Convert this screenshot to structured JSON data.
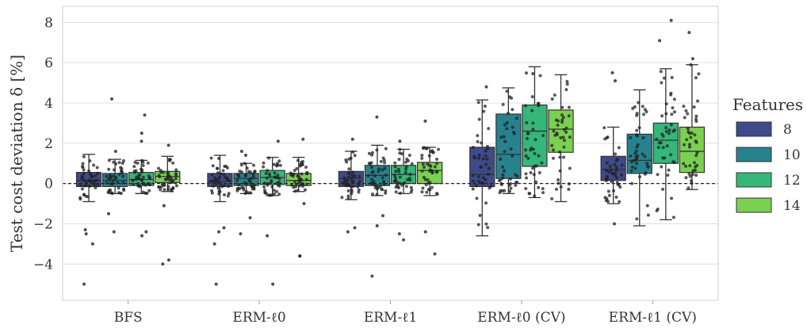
{
  "chart_data": {
    "type": "box",
    "title": "",
    "xlabel": "",
    "ylabel": "Test cost deviation δ [%]",
    "ylim": [
      -5.8,
      8.8
    ],
    "yticks": [
      8,
      6,
      4,
      2,
      0,
      -2,
      -4
    ],
    "ytick_labels": [
      "8",
      "6",
      "4",
      "2",
      "0",
      "−2",
      "−4"
    ],
    "grid": "horizontal",
    "reference_line": {
      "y": 0,
      "style": "dashed"
    },
    "categories": [
      "BFS",
      "ERM-ℓ0",
      "ERM-ℓ1",
      "ERM-ℓ0 (CV)",
      "ERM-ℓ1 (CV)"
    ],
    "legend": {
      "title": "Features",
      "placement": "right"
    },
    "series": [
      {
        "name": "8",
        "color": "#3e4a89",
        "boxes": [
          {
            "whisker_low": -0.9,
            "q1": -0.15,
            "median": 0.15,
            "q3": 0.55,
            "whisker_high": 1.45,
            "outliers": [
              -2.3,
              -2.5,
              -3.0,
              -5.0
            ]
          },
          {
            "whisker_low": -0.9,
            "q1": -0.15,
            "median": 0.1,
            "q3": 0.5,
            "whisker_high": 1.4,
            "outliers": [
              -2.2,
              -2.4,
              -3.0,
              -5.0
            ]
          },
          {
            "whisker_low": -0.8,
            "q1": -0.15,
            "median": 0.25,
            "q3": 0.6,
            "whisker_high": 1.6,
            "outliers": [
              -2.2,
              -2.4,
              2.2
            ]
          },
          {
            "whisker_low": -2.6,
            "q1": -0.15,
            "median": 0.45,
            "q3": 1.8,
            "whisker_high": 4.15,
            "outliers": [
              4.8
            ]
          },
          {
            "whisker_low": -1.0,
            "q1": 0.15,
            "median": 0.7,
            "q3": 1.35,
            "whisker_high": 2.8,
            "outliers": [
              -2.0,
              5.1,
              5.5
            ]
          }
        ]
      },
      {
        "name": "10",
        "color": "#26828e",
        "boxes": [
          {
            "whisker_low": -0.5,
            "q1": -0.15,
            "median": 0.15,
            "q3": 0.5,
            "whisker_high": 1.2,
            "outliers": [
              -1.5,
              -2.4,
              1.6,
              4.2
            ]
          },
          {
            "whisker_low": -0.5,
            "q1": -0.1,
            "median": 0.25,
            "q3": 0.5,
            "whisker_high": 1.0,
            "outliers": [
              -1.7,
              -2.5,
              1.4,
              1.6
            ]
          },
          {
            "whisker_low": -0.6,
            "q1": -0.1,
            "median": 0.4,
            "q3": 0.9,
            "whisker_high": 1.9,
            "outliers": [
              -1.6,
              -2.1,
              -4.6,
              3.3
            ]
          },
          {
            "whisker_low": -0.5,
            "q1": 0.25,
            "median": 1.45,
            "q3": 3.45,
            "whisker_high": 4.75,
            "outliers": []
          },
          {
            "whisker_low": -2.1,
            "q1": 0.5,
            "median": 1.15,
            "q3": 2.45,
            "whisker_high": 4.65,
            "outliers": []
          }
        ]
      },
      {
        "name": "12",
        "color": "#35b779",
        "boxes": [
          {
            "whisker_low": -0.5,
            "q1": -0.1,
            "median": 0.2,
            "q3": 0.55,
            "whisker_high": 1.15,
            "outliers": [
              -2.4,
              -2.6,
              2.1,
              2.5,
              3.4
            ]
          },
          {
            "whisker_low": -0.6,
            "q1": -0.05,
            "median": 0.3,
            "q3": 0.65,
            "whisker_high": 1.3,
            "outliers": [
              -2.6,
              -5.0,
              2.1
            ]
          },
          {
            "whisker_low": -0.5,
            "q1": 0.0,
            "median": 0.45,
            "q3": 0.9,
            "whisker_high": 1.7,
            "outliers": [
              -2.5,
              -2.8,
              2.1
            ]
          },
          {
            "whisker_low": -0.7,
            "q1": 0.85,
            "median": 2.6,
            "q3": 3.9,
            "whisker_high": 5.8,
            "outliers": []
          },
          {
            "whisker_low": -1.8,
            "q1": 1.0,
            "median": 2.15,
            "q3": 3.0,
            "whisker_high": 5.7,
            "outliers": [
              7.1,
              8.1
            ]
          }
        ]
      },
      {
        "name": "14",
        "color": "#7ad151",
        "boxes": [
          {
            "whisker_low": -0.4,
            "q1": 0.05,
            "median": 0.35,
            "q3": 0.6,
            "whisker_high": 1.35,
            "outliers": [
              -1.1,
              -3.8,
              -4.0,
              1.9
            ]
          },
          {
            "whisker_low": -0.4,
            "q1": -0.1,
            "median": 0.15,
            "q3": 0.5,
            "whisker_high": 1.3,
            "outliers": [
              -1.0,
              -3.6,
              -3.6,
              2.2
            ]
          },
          {
            "whisker_low": -0.6,
            "q1": 0.0,
            "median": 0.65,
            "q3": 1.05,
            "whisker_high": 1.8,
            "outliers": [
              -2.4,
              -3.5,
              3.1
            ]
          },
          {
            "whisker_low": -0.9,
            "q1": 1.55,
            "median": 2.7,
            "q3": 3.65,
            "whisker_high": 5.4,
            "outliers": []
          },
          {
            "whisker_low": -0.3,
            "q1": 0.55,
            "median": 1.6,
            "q3": 2.8,
            "whisker_high": 5.9,
            "outliers": [
              6.2,
              7.5
            ]
          }
        ]
      }
    ]
  }
}
